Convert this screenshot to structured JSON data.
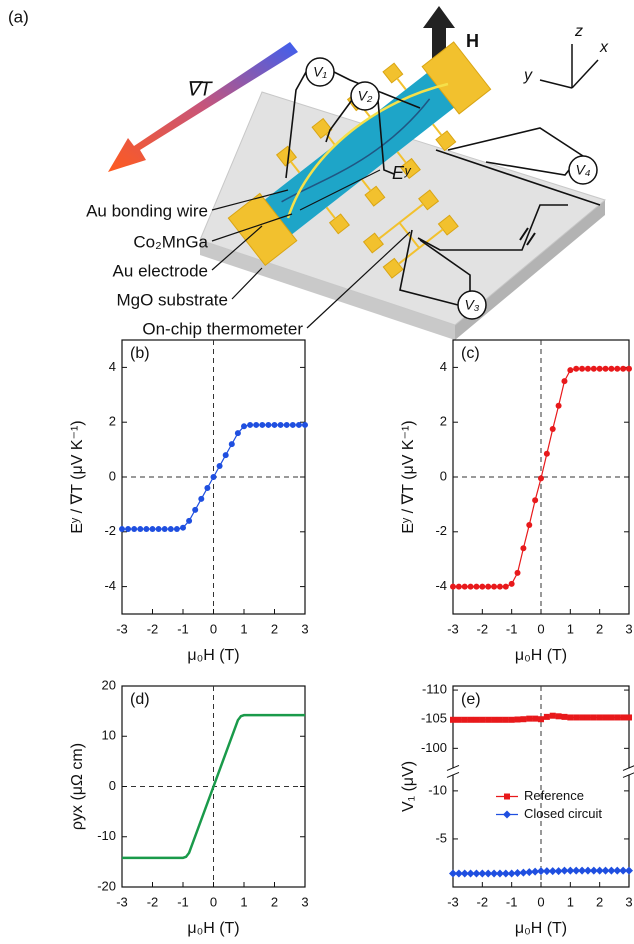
{
  "panel_a": {
    "label": "(a)",
    "gradient": "∇T",
    "field": "H",
    "axes": [
      "z",
      "x",
      "y"
    ],
    "voltmeters": [
      "V₁",
      "V₂",
      "V₃",
      "V₄"
    ],
    "field_label": "Eʸ",
    "callouts": [
      "Au bonding wire",
      "Co₂MnGa",
      "Au electrode",
      "MgO substrate",
      "On-chip thermometer"
    ]
  },
  "chart_data": [
    {
      "type": "line",
      "title": "(b)",
      "xlabel": "μ₀H (T)",
      "ylabel": "Eʸ / ∇T (μV K⁻¹)",
      "color": "#1f4fe0",
      "marker": "circle",
      "zero_lines": [
        "x",
        "y"
      ],
      "xlim": [
        -3,
        3
      ],
      "xticks": [
        -3,
        -2,
        -1,
        0,
        1,
        2,
        3
      ],
      "ylim": [
        -5,
        5
      ],
      "yticks": [
        -4,
        -2,
        0,
        2,
        4
      ],
      "x": [
        -3,
        -2.8,
        -2.6,
        -2.4,
        -2.2,
        -2,
        -1.8,
        -1.6,
        -1.4,
        -1.2,
        -1,
        -0.8,
        -0.6,
        -0.4,
        -0.2,
        0,
        0.2,
        0.4,
        0.6,
        0.8,
        1,
        1.2,
        1.4,
        1.6,
        1.8,
        2,
        2.2,
        2.4,
        2.6,
        2.8,
        3
      ],
      "values": [
        -1.9,
        -1.9,
        -1.9,
        -1.9,
        -1.9,
        -1.9,
        -1.9,
        -1.9,
        -1.9,
        -1.9,
        -1.85,
        -1.6,
        -1.2,
        -0.8,
        -0.4,
        0,
        0.4,
        0.8,
        1.2,
        1.6,
        1.85,
        1.9,
        1.9,
        1.9,
        1.9,
        1.9,
        1.9,
        1.9,
        1.9,
        1.9,
        1.9
      ]
    },
    {
      "type": "line",
      "title": "(c)",
      "xlabel": "μ₀H (T)",
      "ylabel": "Eʸ / ∇T (μV K⁻¹)",
      "color": "#e8191b",
      "marker": "circle",
      "zero_lines": [
        "x",
        "y"
      ],
      "xlim": [
        -3,
        3
      ],
      "xticks": [
        -3,
        -2,
        -1,
        0,
        1,
        2,
        3
      ],
      "ylim": [
        -5,
        5
      ],
      "yticks": [
        -4,
        -2,
        0,
        2,
        4
      ],
      "x": [
        -3,
        -2.8,
        -2.6,
        -2.4,
        -2.2,
        -2,
        -1.8,
        -1.6,
        -1.4,
        -1.2,
        -1,
        -0.8,
        -0.6,
        -0.4,
        -0.2,
        0,
        0.2,
        0.4,
        0.6,
        0.8,
        1,
        1.2,
        1.4,
        1.6,
        1.8,
        2,
        2.2,
        2.4,
        2.6,
        2.8,
        3
      ],
      "values": [
        -4,
        -4,
        -4,
        -4,
        -4,
        -4,
        -4,
        -4,
        -4,
        -4,
        -3.9,
        -3.5,
        -2.6,
        -1.75,
        -0.85,
        -0.05,
        0.85,
        1.75,
        2.6,
        3.5,
        3.9,
        3.95,
        3.95,
        3.95,
        3.95,
        3.95,
        3.95,
        3.95,
        3.95,
        3.95,
        3.95
      ]
    },
    {
      "type": "line",
      "title": "(d)",
      "xlabel": "μ₀H (T)",
      "ylabel": "ρyx (μΩ cm)",
      "color": "#1a9a4a",
      "zero_lines": [
        "x",
        "y"
      ],
      "xlim": [
        -3,
        3
      ],
      "xticks": [
        -3,
        -2,
        -1,
        0,
        1,
        2,
        3
      ],
      "ylim": [
        -20,
        20
      ],
      "yticks": [
        -20,
        -10,
        0,
        10,
        20
      ],
      "x": [
        -3,
        -1,
        -0.9,
        -0.8,
        0,
        0.8,
        0.9,
        1,
        3
      ],
      "values": [
        -14.2,
        -14.2,
        -14,
        -13.2,
        0,
        13.2,
        14,
        14.2,
        14.2
      ]
    },
    {
      "type": "line",
      "title": "(e)",
      "xlabel": "μ₀H (T)",
      "ylabel": "V₁ (μV)",
      "zero_lines": [
        "x"
      ],
      "legend": "center",
      "xlim": [
        -3,
        3
      ],
      "xticks": [
        -3,
        -2,
        -1,
        0,
        1,
        2,
        3
      ],
      "y_segments": [
        {
          "ylim": [
            -96.9,
            -110.7
          ],
          "yticks": [
            -110,
            -105,
            -100
          ]
        },
        {
          "ylim": [
            0,
            -11.5
          ],
          "yticks": [
            -10,
            -5
          ]
        }
      ],
      "x": [
        -3,
        -2.8,
        -2.6,
        -2.4,
        -2.2,
        -2,
        -1.8,
        -1.6,
        -1.4,
        -1.2,
        -1,
        -0.8,
        -0.6,
        -0.4,
        -0.2,
        0,
        0.2,
        0.4,
        0.6,
        0.8,
        1,
        1.2,
        1.4,
        1.6,
        1.8,
        2,
        2.2,
        2.4,
        2.6,
        2.8,
        3
      ],
      "series": [
        {
          "name": "Reference",
          "color": "#e8191b",
          "marker": "square",
          "segment": 0,
          "values": [
            -104.9,
            -104.9,
            -104.9,
            -104.9,
            -104.9,
            -104.9,
            -104.9,
            -104.9,
            -104.9,
            -104.9,
            -104.9,
            -104.95,
            -105,
            -105.1,
            -105.1,
            -105,
            -105.4,
            -105.6,
            -105.5,
            -105.4,
            -105.3,
            -105.3,
            -105.3,
            -105.3,
            -105.3,
            -105.3,
            -105.3,
            -105.3,
            -105.3,
            -105.3,
            -105.3
          ]
        },
        {
          "name": "Closed circuit",
          "color": "#1f4fe0",
          "marker": "diamond",
          "segment": 1,
          "values": [
            -1.4,
            -1.4,
            -1.4,
            -1.4,
            -1.4,
            -1.4,
            -1.4,
            -1.4,
            -1.4,
            -1.4,
            -1.4,
            -1.45,
            -1.5,
            -1.55,
            -1.6,
            -1.65,
            -1.65,
            -1.65,
            -1.65,
            -1.7,
            -1.7,
            -1.7,
            -1.7,
            -1.7,
            -1.7,
            -1.7,
            -1.7,
            -1.7,
            -1.7,
            -1.7,
            -1.7
          ]
        }
      ]
    }
  ]
}
